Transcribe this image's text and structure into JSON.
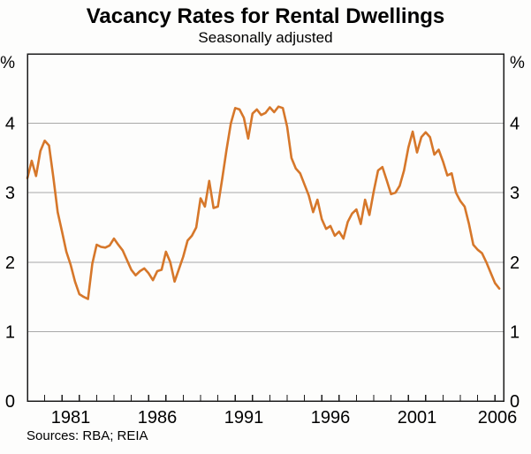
{
  "header": {
    "title": "Vacancy Rates for Rental Dwellings",
    "subtitle": "Seasonally adjusted"
  },
  "footer": {
    "sources": "Sources: RBA; REIA"
  },
  "chart_data": {
    "type": "line",
    "title": "Vacancy Rates for Rental Dwellings",
    "subtitle": "Seasonally adjusted",
    "series_name": "Rental dwelling vacancy rate (per cent, seasonally adjusted)",
    "unit_label": "%",
    "grid": "horizontal",
    "legend": "none",
    "xlim": [
      1979,
      2006.5
    ],
    "ylim": [
      0,
      5
    ],
    "y_gridlines": [
      1,
      2,
      3,
      4
    ],
    "y_tick_labels": [
      "0",
      "1",
      "2",
      "3",
      "4"
    ],
    "x_labeled_years": [
      1981,
      1986,
      1991,
      1996,
      2001,
      2006
    ],
    "x_minor_tick_step": 1,
    "line_color": "#D6772A",
    "gridline_color": "#A8A8A8",
    "frame_color": "#1C1C1C",
    "x": [
      1979.0,
      1979.25,
      1979.5,
      1979.75,
      1980.0,
      1980.25,
      1980.5,
      1980.75,
      1981.0,
      1981.25,
      1981.5,
      1981.75,
      1982.0,
      1982.25,
      1982.5,
      1982.75,
      1983.0,
      1983.25,
      1983.5,
      1983.75,
      1984.0,
      1984.25,
      1984.5,
      1984.75,
      1985.0,
      1985.25,
      1985.5,
      1985.75,
      1986.0,
      1986.25,
      1986.5,
      1986.75,
      1987.0,
      1987.25,
      1987.5,
      1987.75,
      1988.0,
      1988.25,
      1988.5,
      1988.75,
      1989.0,
      1989.25,
      1989.5,
      1989.75,
      1990.0,
      1990.25,
      1990.5,
      1990.75,
      1991.0,
      1991.25,
      1991.5,
      1991.75,
      1992.0,
      1992.25,
      1992.5,
      1992.75,
      1993.0,
      1993.25,
      1993.5,
      1993.75,
      1994.0,
      1994.25,
      1994.5,
      1994.75,
      1995.0,
      1995.25,
      1995.5,
      1995.75,
      1996.0,
      1996.25,
      1996.5,
      1996.75,
      1997.0,
      1997.25,
      1997.5,
      1997.75,
      1998.0,
      1998.25,
      1998.5,
      1998.75,
      1999.0,
      1999.25,
      1999.5,
      1999.75,
      2000.0,
      2000.25,
      2000.5,
      2000.75,
      2001.0,
      2001.25,
      2001.5,
      2001.75,
      2002.0,
      2002.25,
      2002.5,
      2002.75,
      2003.0,
      2003.25,
      2003.5,
      2003.75,
      2004.0,
      2004.25,
      2004.5,
      2004.75,
      2005.0,
      2005.25,
      2005.5,
      2005.75,
      2006.0,
      2006.25
    ],
    "values": [
      3.21,
      3.46,
      3.24,
      3.6,
      3.75,
      3.68,
      3.22,
      2.72,
      2.44,
      2.15,
      1.96,
      1.72,
      1.54,
      1.5,
      1.47,
      1.98,
      2.25,
      2.22,
      2.21,
      2.24,
      2.34,
      2.25,
      2.17,
      2.03,
      1.89,
      1.81,
      1.87,
      1.91,
      1.84,
      1.74,
      1.87,
      1.89,
      2.15,
      2.0,
      1.72,
      1.9,
      2.08,
      2.31,
      2.38,
      2.5,
      2.92,
      2.8,
      3.17,
      2.78,
      2.8,
      3.2,
      3.62,
      4.0,
      4.22,
      4.2,
      4.08,
      3.78,
      4.14,
      4.2,
      4.12,
      4.15,
      4.23,
      4.16,
      4.24,
      4.22,
      3.95,
      3.5,
      3.35,
      3.28,
      3.12,
      2.96,
      2.72,
      2.9,
      2.62,
      2.48,
      2.52,
      2.38,
      2.44,
      2.34,
      2.58,
      2.7,
      2.76,
      2.55,
      2.9,
      2.68,
      3.02,
      3.32,
      3.37,
      3.18,
      2.98,
      3.0,
      3.1,
      3.32,
      3.65,
      3.88,
      3.58,
      3.8,
      3.87,
      3.8,
      3.55,
      3.62,
      3.45,
      3.25,
      3.28,
      3.0,
      2.88,
      2.8,
      2.55,
      2.25,
      2.18,
      2.13,
      2.0,
      1.85,
      1.7,
      1.62
    ]
  }
}
